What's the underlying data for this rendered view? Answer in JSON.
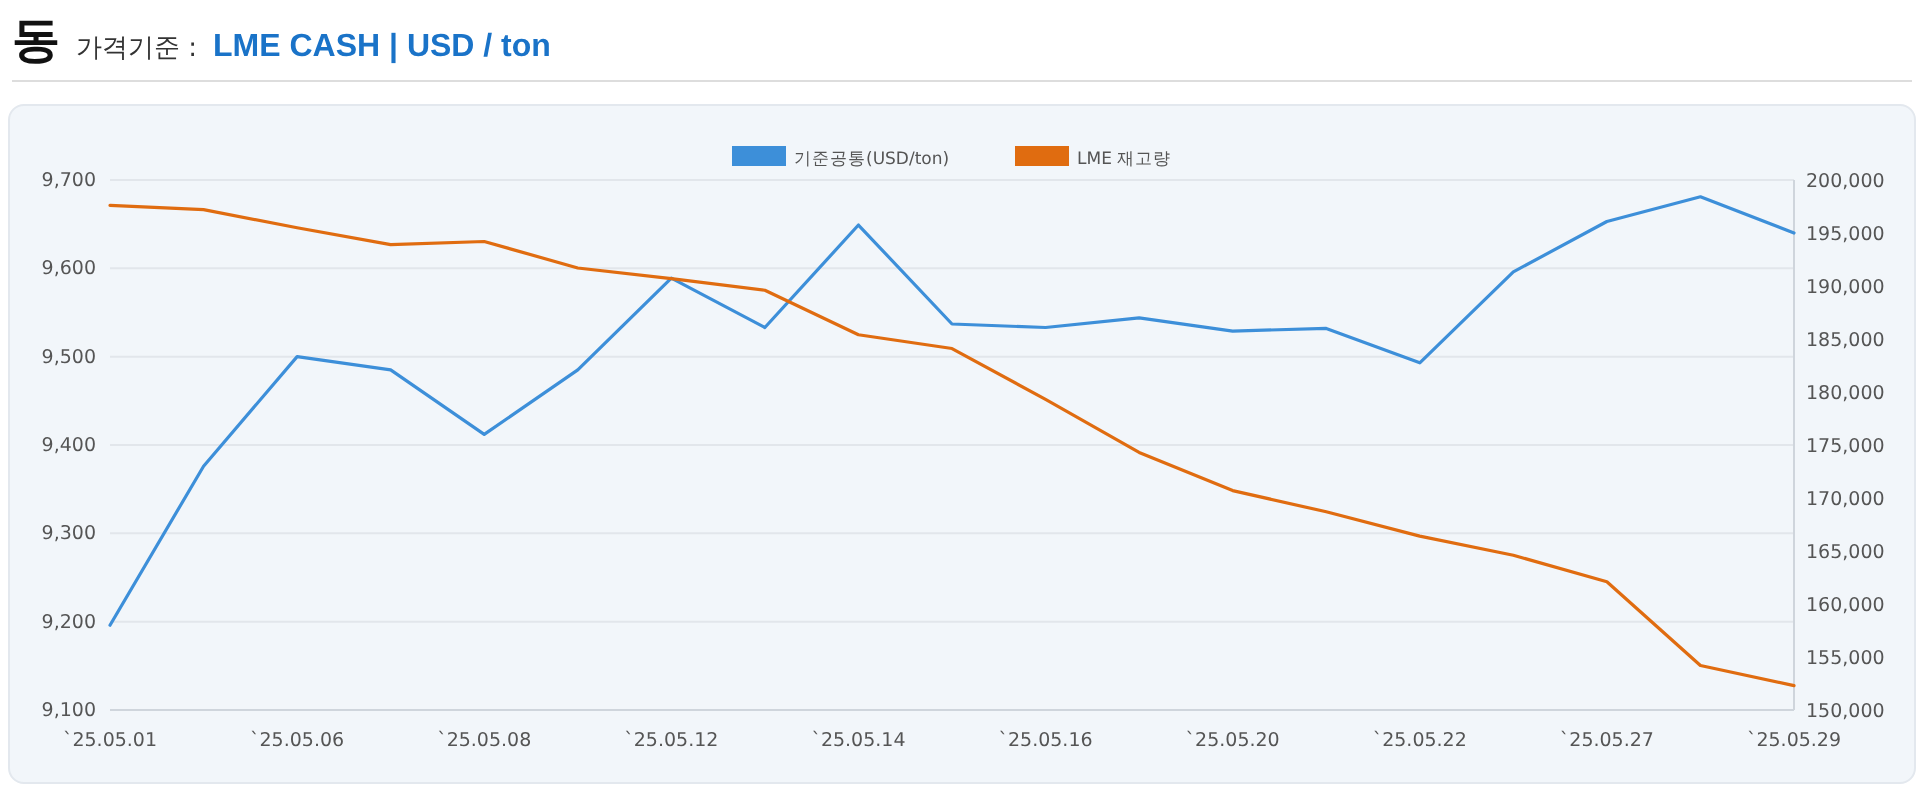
{
  "chart_data": {
    "type": "line",
    "title": "동",
    "subtitle": "가격기준 :",
    "annotations": [
      "LME CASH | USD / ton"
    ],
    "categories": [
      "`25.05.01",
      null,
      "`25.05.06",
      null,
      "`25.05.08",
      null,
      "`25.05.12",
      null,
      "`25.05.14",
      null,
      "`25.05.16",
      null,
      "`25.05.20",
      null,
      "`25.05.22",
      null,
      "`25.05.27",
      null,
      "`25.05.29"
    ],
    "series": [
      {
        "name": "기준공통(USD/ton)",
        "color": "#3d8fd9",
        "values": [
          9196,
          9376,
          9500,
          9485,
          9412,
          9485,
          9589,
          9533,
          9649,
          9537,
          9533,
          9544,
          9529,
          9532,
          9493,
          9596,
          9653,
          9681,
          9640
        ]
      },
      {
        "name": "LME 재고량",
        "color": "#e06c10",
        "axis": "y2",
        "values": [
          197600,
          197200,
          195500,
          193900,
          194200,
          191700,
          190700,
          189600,
          185400,
          184100,
          179300,
          174300,
          170700,
          168700,
          166400,
          164600,
          162100,
          154200,
          152300
        ]
      }
    ],
    "ylim": [
      9100,
      9700
    ],
    "yticks": [
      {
        "value": 9100,
        "label": "9,100"
      },
      {
        "value": 9200,
        "label": "9,200"
      },
      {
        "value": 9300,
        "label": "9,300"
      },
      {
        "value": 9400,
        "label": "9,400"
      },
      {
        "value": 9500,
        "label": "9,500"
      },
      {
        "value": 9600,
        "label": "9,600"
      },
      {
        "value": 9700,
        "label": "9,700"
      }
    ],
    "y2lim": [
      150000,
      200000
    ],
    "y2ticks": [
      {
        "value": 150000,
        "label": "150,000"
      },
      {
        "value": 155000,
        "label": "155,000"
      },
      {
        "value": 160000,
        "label": "160,000"
      },
      {
        "value": 165000,
        "label": "165,000"
      },
      {
        "value": 170000,
        "label": "170,000"
      },
      {
        "value": 175000,
        "label": "175,000"
      },
      {
        "value": 180000,
        "label": "180,000"
      },
      {
        "value": 185000,
        "label": "185,000"
      },
      {
        "value": 190000,
        "label": "190,000"
      },
      {
        "value": 195000,
        "label": "195,000"
      },
      {
        "value": 200000,
        "label": "200,000"
      }
    ],
    "grid": "y",
    "legend": "top",
    "marker": "none",
    "line_style": "solid"
  }
}
